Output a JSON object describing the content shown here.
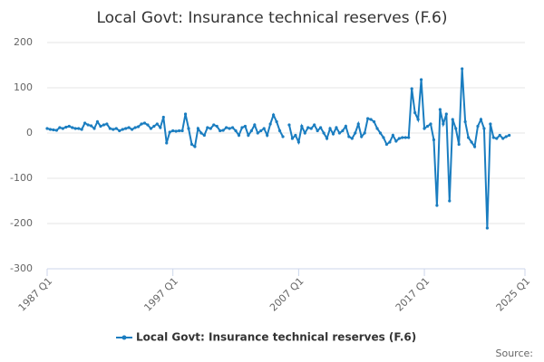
{
  "chart_data": {
    "type": "line",
    "title": "Local Govt: Insurance technical reserves (F.6)",
    "source": "Source:",
    "categories": [
      "1987 Q1",
      null,
      null,
      null,
      null,
      null,
      null,
      null,
      null,
      null,
      null,
      null,
      null,
      null,
      null,
      null,
      null,
      null,
      null,
      null,
      null,
      null,
      null,
      null,
      null,
      null,
      null,
      null,
      null,
      null,
      null,
      null,
      null,
      null,
      null,
      null,
      null,
      null,
      null,
      null,
      "1997 Q1",
      null,
      null,
      null,
      null,
      null,
      null,
      null,
      null,
      null,
      null,
      null,
      null,
      null,
      null,
      null,
      null,
      null,
      null,
      null,
      null,
      null,
      null,
      null,
      null,
      null,
      null,
      null,
      null,
      null,
      null,
      null,
      null,
      null,
      null,
      null,
      null,
      null,
      null,
      null,
      "2007 Q1",
      null,
      null,
      null,
      null,
      null,
      null,
      null,
      null,
      null,
      null,
      null,
      null,
      null,
      null,
      null,
      null,
      null,
      null,
      null,
      null,
      null,
      null,
      null,
      null,
      null,
      null,
      null,
      null,
      null,
      null,
      null,
      null,
      null,
      null,
      null,
      null,
      null,
      null,
      null,
      "2017 Q1",
      null,
      null,
      null,
      null,
      null,
      null,
      null,
      null,
      null,
      null,
      null,
      null,
      null,
      null,
      null,
      null,
      null,
      null,
      null,
      null,
      null,
      null,
      null,
      null,
      null,
      null,
      null,
      null,
      null,
      null,
      null,
      "2025 Q1"
    ],
    "series": [
      {
        "name": "Local Govt: Insurance technical reserves (F.6)",
        "color": "#1a7dc0",
        "values": [
          10,
          8,
          7,
          6,
          12,
          10,
          13,
          15,
          12,
          10,
          10,
          8,
          22,
          18,
          16,
          10,
          25,
          15,
          18,
          20,
          10,
          8,
          10,
          5,
          8,
          10,
          12,
          8,
          12,
          14,
          20,
          22,
          18,
          10,
          15,
          20,
          12,
          35,
          -22,
          2,
          5,
          4,
          5,
          5,
          42,
          10,
          -25,
          -30,
          10,
          0,
          -5,
          12,
          10,
          18,
          15,
          5,
          6,
          12,
          10,
          12,
          5,
          -5,
          12,
          15,
          -5,
          5,
          18,
          0,
          5,
          10,
          -5,
          20,
          40,
          25,
          5,
          -8,
          null,
          18,
          -12,
          -5,
          -20,
          15,
          0,
          12,
          10,
          18,
          5,
          12,
          0,
          -12,
          10,
          -2,
          12,
          0,
          5,
          15,
          -8,
          -12,
          0,
          20,
          -8,
          0,
          32,
          30,
          25,
          10,
          0,
          -10,
          -25,
          -20,
          -5,
          -18,
          -12,
          -10,
          -10,
          -10,
          98,
          45,
          30,
          118,
          10,
          15,
          20,
          -15,
          -160,
          52,
          20,
          42,
          -150,
          30,
          10,
          -25,
          142,
          25,
          -10,
          -20,
          -30,
          15,
          30,
          10,
          -210,
          20,
          -10,
          -12,
          -5,
          -12,
          -8,
          -5,
          null,
          null,
          null,
          null,
          null
        ]
      }
    ],
    "ylim": [
      -300,
      200
    ],
    "yticks": [
      200,
      100,
      0,
      -100,
      -200,
      -300
    ],
    "grid": true
  }
}
